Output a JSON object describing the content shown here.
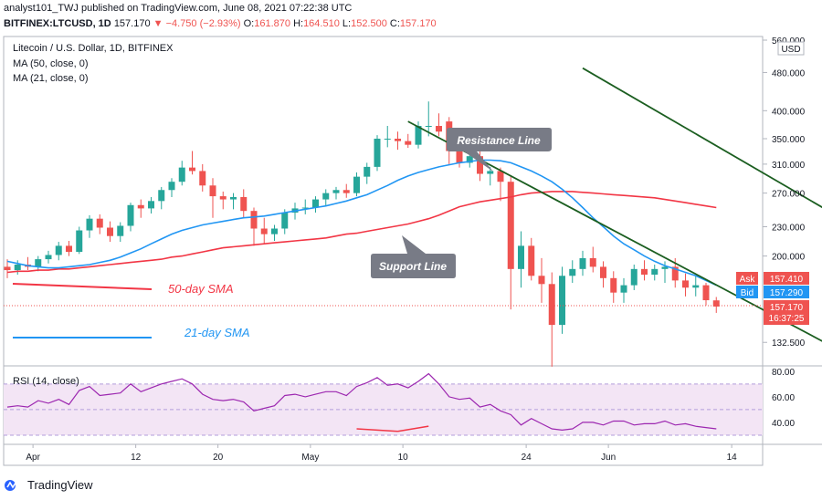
{
  "header": {
    "line1": "analyst101_TWJ published on TradingView.com, June 08, 2021 07:22:38 UTC",
    "symbol": "BITFINEX:LTCUSD, 1D",
    "last": "157.170",
    "change": "−4.750 (−2.93%)",
    "o_label": "O:",
    "o": "161.870",
    "h_label": "H:",
    "h": "164.510",
    "l_label": "L:",
    "l": "152.500",
    "c_label": "C:",
    "c": "157.170"
  },
  "legend": {
    "title": "Litecoin / U.S. Dollar, 1D, BITFINEX",
    "ma50": "MA (50, close, 0)",
    "ma21": "MA (21, close, 0)",
    "rsi": "RSI (14, close)"
  },
  "annotations": {
    "resistance": "Resistance Line",
    "support": "Support Line",
    "sma50": "50-day SMA",
    "sma21": "21-day SMA"
  },
  "price_tags": {
    "ask_label": "Ask",
    "ask": "157.410",
    "bid_label": "Bid",
    "bid": "157.290",
    "last": "157.170",
    "countdown": "16:37:25"
  },
  "currency": "USD",
  "footer": {
    "brand": "TradingView"
  },
  "colors": {
    "up": "#26a69a",
    "down": "#ef5350",
    "ma50": "#f23645",
    "ma21": "#2196f3",
    "trendline": "#1b5e20",
    "rsi": "#9c27b0",
    "rsi_band": "#f3e5f5",
    "ask": "#ef5350",
    "bid": "#2196f3"
  },
  "chart_data": {
    "type": "candlestick",
    "y_axis_ticks": [
      "560.000",
      "480.000",
      "400.000",
      "350.000",
      "310.000",
      "270.000",
      "230.000",
      "200.000",
      "132.500"
    ],
    "ylim": [
      120,
      560
    ],
    "y_scale": "log",
    "x_axis_ticks": [
      "Apr",
      "12",
      "20",
      "May",
      "10",
      "24",
      "Jun",
      "14"
    ],
    "rsi_ticks": [
      "80.00",
      "60.00",
      "40.00"
    ],
    "rsi_ylim": [
      25,
      82
    ],
    "candles": [
      {
        "o": 190,
        "h": 197,
        "l": 180,
        "c": 187
      },
      {
        "o": 187,
        "h": 196,
        "l": 183,
        "c": 192
      },
      {
        "o": 192,
        "h": 199,
        "l": 187,
        "c": 190
      },
      {
        "o": 190,
        "h": 200,
        "l": 186,
        "c": 197
      },
      {
        "o": 197,
        "h": 205,
        "l": 193,
        "c": 201
      },
      {
        "o": 201,
        "h": 214,
        "l": 196,
        "c": 210
      },
      {
        "o": 210,
        "h": 215,
        "l": 200,
        "c": 204
      },
      {
        "o": 204,
        "h": 230,
        "l": 202,
        "c": 226
      },
      {
        "o": 226,
        "h": 243,
        "l": 218,
        "c": 239
      },
      {
        "o": 239,
        "h": 244,
        "l": 222,
        "c": 229
      },
      {
        "o": 229,
        "h": 236,
        "l": 214,
        "c": 220
      },
      {
        "o": 220,
        "h": 235,
        "l": 214,
        "c": 231
      },
      {
        "o": 231,
        "h": 258,
        "l": 225,
        "c": 255
      },
      {
        "o": 255,
        "h": 262,
        "l": 240,
        "c": 251
      },
      {
        "o": 251,
        "h": 265,
        "l": 245,
        "c": 260
      },
      {
        "o": 260,
        "h": 278,
        "l": 250,
        "c": 274
      },
      {
        "o": 274,
        "h": 290,
        "l": 265,
        "c": 285
      },
      {
        "o": 285,
        "h": 315,
        "l": 280,
        "c": 305
      },
      {
        "o": 305,
        "h": 330,
        "l": 295,
        "c": 300
      },
      {
        "o": 300,
        "h": 310,
        "l": 272,
        "c": 280
      },
      {
        "o": 280,
        "h": 290,
        "l": 240,
        "c": 266
      },
      {
        "o": 266,
        "h": 272,
        "l": 250,
        "c": 262
      },
      {
        "o": 262,
        "h": 270,
        "l": 250,
        "c": 265
      },
      {
        "o": 265,
        "h": 275,
        "l": 240,
        "c": 248
      },
      {
        "o": 248,
        "h": 252,
        "l": 210,
        "c": 228
      },
      {
        "o": 228,
        "h": 240,
        "l": 212,
        "c": 222
      },
      {
        "o": 222,
        "h": 232,
        "l": 215,
        "c": 228
      },
      {
        "o": 228,
        "h": 250,
        "l": 222,
        "c": 246
      },
      {
        "o": 246,
        "h": 258,
        "l": 238,
        "c": 251
      },
      {
        "o": 251,
        "h": 262,
        "l": 244,
        "c": 252
      },
      {
        "o": 252,
        "h": 266,
        "l": 246,
        "c": 262
      },
      {
        "o": 262,
        "h": 275,
        "l": 254,
        "c": 270
      },
      {
        "o": 270,
        "h": 278,
        "l": 262,
        "c": 274
      },
      {
        "o": 274,
        "h": 282,
        "l": 264,
        "c": 270
      },
      {
        "o": 270,
        "h": 298,
        "l": 266,
        "c": 292
      },
      {
        "o": 292,
        "h": 312,
        "l": 282,
        "c": 306
      },
      {
        "o": 306,
        "h": 356,
        "l": 300,
        "c": 350
      },
      {
        "o": 350,
        "h": 372,
        "l": 336,
        "c": 350
      },
      {
        "o": 350,
        "h": 362,
        "l": 332,
        "c": 346
      },
      {
        "o": 346,
        "h": 358,
        "l": 335,
        "c": 340
      },
      {
        "o": 340,
        "h": 380,
        "l": 334,
        "c": 372
      },
      {
        "o": 372,
        "h": 418,
        "l": 354,
        "c": 372
      },
      {
        "o": 372,
        "h": 395,
        "l": 354,
        "c": 362
      },
      {
        "o": 380,
        "h": 388,
        "l": 310,
        "c": 330
      },
      {
        "o": 330,
        "h": 345,
        "l": 305,
        "c": 312
      },
      {
        "o": 312,
        "h": 335,
        "l": 305,
        "c": 322
      },
      {
        "o": 322,
        "h": 345,
        "l": 286,
        "c": 296
      },
      {
        "o": 296,
        "h": 306,
        "l": 280,
        "c": 300
      },
      {
        "o": 300,
        "h": 305,
        "l": 260,
        "c": 285
      },
      {
        "o": 285,
        "h": 292,
        "l": 155,
        "c": 188
      },
      {
        "o": 188,
        "h": 225,
        "l": 172,
        "c": 210
      },
      {
        "o": 210,
        "h": 218,
        "l": 178,
        "c": 182
      },
      {
        "o": 182,
        "h": 198,
        "l": 160,
        "c": 175
      },
      {
        "o": 175,
        "h": 185,
        "l": 118,
        "c": 144
      },
      {
        "o": 144,
        "h": 190,
        "l": 138,
        "c": 182
      },
      {
        "o": 182,
        "h": 196,
        "l": 176,
        "c": 188
      },
      {
        "o": 188,
        "h": 205,
        "l": 182,
        "c": 198
      },
      {
        "o": 198,
        "h": 209,
        "l": 185,
        "c": 190
      },
      {
        "o": 190,
        "h": 195,
        "l": 172,
        "c": 180
      },
      {
        "o": 180,
        "h": 186,
        "l": 160,
        "c": 168
      },
      {
        "o": 168,
        "h": 180,
        "l": 160,
        "c": 174
      },
      {
        "o": 174,
        "h": 192,
        "l": 170,
        "c": 188
      },
      {
        "o": 188,
        "h": 196,
        "l": 178,
        "c": 183
      },
      {
        "o": 183,
        "h": 192,
        "l": 178,
        "c": 188
      },
      {
        "o": 188,
        "h": 195,
        "l": 176,
        "c": 190
      },
      {
        "o": 190,
        "h": 198,
        "l": 172,
        "c": 178
      },
      {
        "o": 178,
        "h": 184,
        "l": 165,
        "c": 172
      },
      {
        "o": 172,
        "h": 182,
        "l": 165,
        "c": 174
      },
      {
        "o": 174,
        "h": 176,
        "l": 158,
        "c": 162
      },
      {
        "o": 161.87,
        "h": 164.51,
        "l": 152.5,
        "c": 157.17
      }
    ],
    "ma50": [
      185,
      186,
      186,
      187,
      187,
      188,
      188,
      189,
      190,
      191,
      192,
      193,
      194,
      195,
      196,
      197,
      199,
      200,
      202,
      204,
      206,
      208,
      209,
      210,
      211,
      212,
      213,
      214,
      215,
      216,
      217,
      218,
      220,
      222,
      223,
      225,
      227,
      229,
      231,
      233,
      236,
      239,
      243,
      248,
      253,
      256,
      259,
      261,
      263,
      265,
      268,
      270,
      271,
      272,
      272,
      272,
      271,
      270,
      269,
      268,
      267,
      266,
      265,
      264,
      262,
      260,
      258,
      256,
      254,
      252
    ],
    "ma21": [
      195,
      193,
      191,
      190,
      189,
      189,
      190,
      191,
      192,
      194,
      196,
      199,
      203,
      207,
      212,
      217,
      222,
      226,
      229,
      232,
      234,
      236,
      238,
      240,
      241,
      242,
      244,
      246,
      248,
      250,
      252,
      254,
      257,
      260,
      264,
      268,
      274,
      280,
      287,
      293,
      298,
      302,
      306,
      309,
      312,
      314,
      316,
      316,
      315,
      312,
      306,
      300,
      293,
      285,
      275,
      264,
      252,
      240,
      230,
      220,
      212,
      206,
      200,
      195,
      191,
      188,
      185,
      182,
      178,
      174
    ],
    "trendlines": [
      {
        "name": "Resistance Line",
        "from": [
          56,
          490
        ],
        "to": [
          100,
          140
        ]
      },
      {
        "name": "Support Line",
        "from": [
          39,
          380
        ],
        "to": [
          84,
          118
        ]
      }
    ],
    "rsi": [
      52,
      53,
      52,
      57,
      55,
      58,
      54,
      65,
      68,
      61,
      62,
      63,
      70,
      64,
      67,
      70,
      72,
      74,
      70,
      62,
      58,
      57,
      58,
      56,
      49,
      51,
      53,
      61,
      62,
      60,
      62,
      64,
      64,
      61,
      68,
      71,
      75,
      69,
      70,
      67,
      72,
      78,
      70,
      60,
      58,
      59,
      52,
      54,
      49,
      46,
      38,
      43,
      39,
      35,
      34,
      35,
      40,
      40,
      38,
      41,
      41,
      38,
      39,
      39,
      41,
      38,
      39,
      37,
      36,
      35
    ]
  }
}
